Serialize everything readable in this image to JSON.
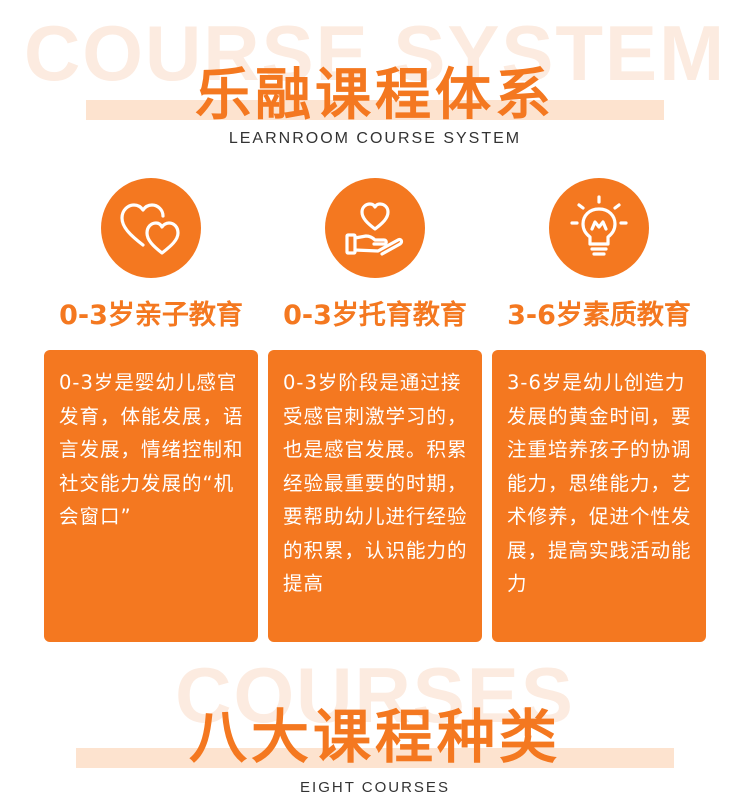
{
  "header": {
    "watermark": "COURSE SYSTEM",
    "title": "乐融课程体系",
    "subtitle": "LEARNROOM COURSE SYSTEM"
  },
  "columns": [
    {
      "icon": "hearts-icon",
      "title": "0-3岁亲子教育",
      "description": "0-3岁是婴幼儿感官发育，体能发展，语言发展，情绪控制和社交能力发展的“机会窗口”"
    },
    {
      "icon": "heart-in-hand-icon",
      "title": "0-3岁托育教育",
      "description": "0-3岁阶段是通过接受感官刺激学习的，也是感官发展。积累经验最重要的时期，要帮助幼儿进行经验的积累，认识能力的提高"
    },
    {
      "icon": "lightbulb-icon",
      "title": "3-6岁素质教育",
      "description": "3-6岁是幼儿创造力发展的黄金时间，要注重培养孩子的协调能力，思维能力，艺术修养，促进个性发展，提高实践活动能力"
    }
  ],
  "footer": {
    "watermark": "COURSES",
    "title": "八大课程种类",
    "subtitle": "EIGHT COURSES"
  },
  "colors": {
    "accent": "#f47820",
    "accent_light": "#fde3cf",
    "watermark": "#fcebe0",
    "card_text": "#ffffff"
  }
}
